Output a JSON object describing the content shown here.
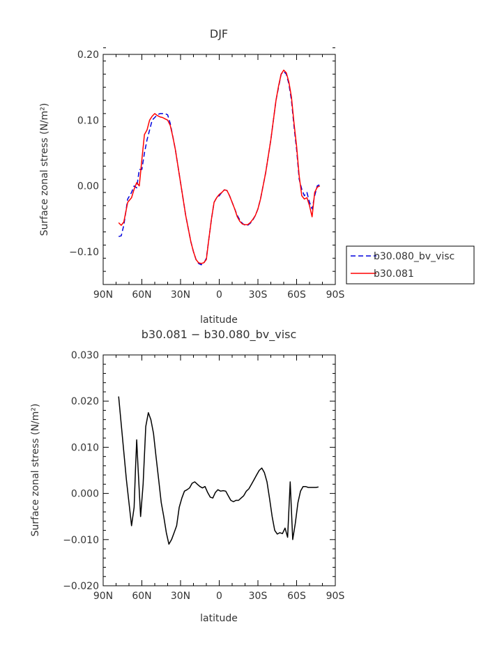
{
  "chart_data": [
    {
      "type": "line",
      "title": "DJF",
      "xlabel": "latitude",
      "ylabel": "Surface zonal stress (N/m²)",
      "xlim": [
        -90,
        90
      ],
      "ylim": [
        -0.15,
        0.2
      ],
      "x_ticks": [
        -90,
        -60,
        -30,
        0,
        30,
        60,
        90
      ],
      "x_tick_labels": [
        "90N",
        "60N",
        "30N",
        "0",
        "30S",
        "60S",
        "90S"
      ],
      "y_ticks": [
        -0.1,
        0.0,
        0.1,
        0.2
      ],
      "y_tick_labels": [
        "−0.10",
        "0.00",
        "0.10",
        "0.20"
      ],
      "legend": "outside-right",
      "series": [
        {
          "name": "b30.080_bv_visc",
          "color": "#0000dd",
          "dash": "dashed",
          "x": [
            -78,
            -76,
            -74,
            -71,
            -68,
            -66,
            -64,
            -62,
            -60,
            -58,
            -56,
            -54,
            -52,
            -50,
            -48,
            -46,
            -44,
            -42,
            -40,
            -38,
            -36,
            -34,
            -32,
            -30,
            -28,
            -26,
            -24,
            -22,
            -20,
            -18,
            -16,
            -14,
            -12,
            -10,
            -8,
            -6,
            -4,
            -2,
            0,
            2,
            4,
            6,
            8,
            10,
            12,
            14,
            16,
            18,
            20,
            22,
            24,
            26,
            28,
            30,
            32,
            34,
            36,
            38,
            40,
            42,
            44,
            46,
            48,
            50,
            52,
            54,
            56,
            58,
            60,
            62,
            64,
            66,
            68,
            70,
            72,
            74,
            76,
            78
          ],
          "y": [
            -0.077,
            -0.076,
            -0.06,
            -0.02,
            -0.01,
            0.0,
            -0.003,
            0.025,
            0.025,
            0.05,
            0.07,
            0.085,
            0.1,
            0.104,
            0.108,
            0.11,
            0.11,
            0.11,
            0.108,
            0.095,
            0.075,
            0.055,
            0.03,
            0.005,
            -0.02,
            -0.045,
            -0.065,
            -0.085,
            -0.1,
            -0.112,
            -0.118,
            -0.12,
            -0.118,
            -0.11,
            -0.08,
            -0.05,
            -0.025,
            -0.018,
            -0.015,
            -0.01,
            -0.006,
            -0.007,
            -0.015,
            -0.025,
            -0.035,
            -0.045,
            -0.052,
            -0.057,
            -0.06,
            -0.06,
            -0.057,
            -0.052,
            -0.045,
            -0.035,
            -0.02,
            0.0,
            0.02,
            0.045,
            0.07,
            0.1,
            0.13,
            0.15,
            0.17,
            0.174,
            0.17,
            0.155,
            0.13,
            0.09,
            0.055,
            0.01,
            -0.005,
            -0.015,
            -0.01,
            -0.025,
            -0.035,
            -0.015,
            0.0,
            0.002
          ]
        },
        {
          "name": "b30.081",
          "color": "#ff0000",
          "dash": "solid",
          "x": [
            -78,
            -76,
            -74,
            -71,
            -68,
            -66,
            -64,
            -62,
            -60,
            -58,
            -56,
            -54,
            -52,
            -50,
            -48,
            -46,
            -44,
            -42,
            -40,
            -38,
            -36,
            -34,
            -32,
            -30,
            -28,
            -26,
            -24,
            -22,
            -20,
            -18,
            -16,
            -14,
            -12,
            -10,
            -8,
            -6,
            -4,
            -2,
            0,
            2,
            4,
            6,
            8,
            10,
            12,
            14,
            16,
            18,
            20,
            22,
            24,
            26,
            28,
            30,
            32,
            34,
            36,
            38,
            40,
            42,
            44,
            46,
            48,
            50,
            52,
            54,
            56,
            58,
            60,
            62,
            64,
            66,
            68,
            70,
            72,
            74,
            76,
            78
          ],
          "y": [
            -0.056,
            -0.06,
            -0.055,
            -0.025,
            -0.018,
            -0.005,
            0.005,
            0.0,
            0.04,
            0.078,
            0.085,
            0.1,
            0.106,
            0.11,
            0.107,
            0.105,
            0.104,
            0.102,
            0.1,
            0.092,
            0.075,
            0.055,
            0.03,
            0.005,
            -0.02,
            -0.045,
            -0.065,
            -0.085,
            -0.1,
            -0.112,
            -0.117,
            -0.118,
            -0.117,
            -0.112,
            -0.08,
            -0.05,
            -0.025,
            -0.018,
            -0.013,
            -0.01,
            -0.006,
            -0.007,
            -0.015,
            -0.025,
            -0.035,
            -0.047,
            -0.054,
            -0.058,
            -0.059,
            -0.059,
            -0.056,
            -0.051,
            -0.045,
            -0.035,
            -0.02,
            0.0,
            0.02,
            0.045,
            0.07,
            0.1,
            0.13,
            0.152,
            0.17,
            0.176,
            0.172,
            0.158,
            0.135,
            0.095,
            0.06,
            0.015,
            -0.015,
            -0.02,
            -0.018,
            -0.03,
            -0.047,
            -0.01,
            -0.002,
            0.0
          ]
        }
      ]
    },
    {
      "type": "line",
      "title": "b30.081 − b30.080_bv_visc",
      "xlabel": "latitude",
      "ylabel": "Surface zonal stress (N/m²)",
      "xlim": [
        -90,
        90
      ],
      "ylim": [
        -0.02,
        0.03
      ],
      "x_ticks": [
        -90,
        -60,
        -30,
        0,
        30,
        60,
        90
      ],
      "x_tick_labels": [
        "90N",
        "60N",
        "30N",
        "0",
        "30S",
        "60S",
        "90S"
      ],
      "y_ticks": [
        -0.02,
        -0.01,
        0.0,
        0.01,
        0.02,
        0.03
      ],
      "y_tick_labels": [
        "−0.020",
        "−0.010",
        "0.000",
        "0.010",
        "0.020",
        "0.030"
      ],
      "series": [
        {
          "name": "",
          "color": "#000000",
          "dash": "solid",
          "x": [
            -78,
            -76,
            -74,
            -72,
            -70,
            -68,
            -66,
            -65,
            -64,
            -63,
            -61,
            -59,
            -57,
            -55,
            -53,
            -51,
            -49,
            -47,
            -45,
            -43,
            -41,
            -39,
            -37,
            -35,
            -33,
            -31,
            -29,
            -27,
            -25,
            -23,
            -21,
            -19,
            -17,
            -15,
            -13,
            -11,
            -9,
            -7,
            -5,
            -3,
            -1,
            1,
            3,
            5,
            7,
            9,
            11,
            13,
            15,
            17,
            19,
            21,
            23,
            25,
            27,
            29,
            31,
            33,
            35,
            37,
            39,
            41,
            43,
            45,
            47,
            49,
            51,
            53,
            55,
            57,
            59,
            61,
            63,
            65,
            67,
            68,
            69,
            70,
            71,
            72,
            73,
            74,
            75,
            77
          ],
          "y": [
            0.021,
            0.015,
            0.009,
            0.003,
            -0.002,
            -0.007,
            -0.003,
            0.005,
            0.0116,
            0.006,
            -0.005,
            0.002,
            0.0145,
            0.0175,
            0.016,
            0.013,
            0.008,
            0.003,
            -0.002,
            -0.005,
            -0.0085,
            -0.011,
            -0.01,
            -0.0085,
            -0.007,
            -0.003,
            -0.001,
            0.0005,
            0.0008,
            0.0012,
            0.0022,
            0.0025,
            0.002,
            0.0015,
            0.0012,
            0.0015,
            0.0002,
            -0.0008,
            -0.001,
            0.0002,
            0.0008,
            0.0005,
            0.0006,
            0.0005,
            -0.0005,
            -0.0015,
            -0.0018,
            -0.0015,
            -0.0015,
            -0.001,
            -0.0005,
            0.0005,
            0.001,
            0.002,
            0.003,
            0.004,
            0.005,
            0.0055,
            0.0045,
            0.0025,
            -0.001,
            -0.005,
            -0.008,
            -0.0088,
            -0.0085,
            -0.0087,
            -0.0075,
            -0.0095,
            0.0025,
            -0.01,
            -0.0065,
            -0.002,
            0.0005,
            0.0015,
            0.0015,
            0.0014,
            0.0013,
            0.0013,
            0.0013,
            0.0013,
            0.0013,
            0.0013,
            0.0013,
            0.0014
          ]
        }
      ]
    }
  ]
}
